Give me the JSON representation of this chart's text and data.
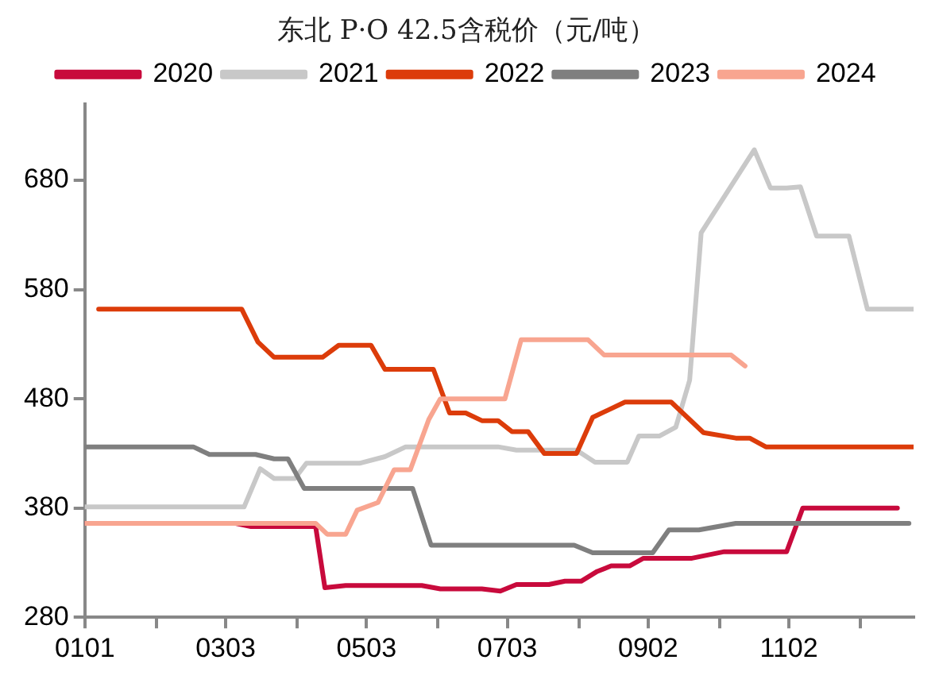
{
  "chart_data": {
    "type": "line",
    "title": "东北 P·O 42.5含税价（元/吨）",
    "legend": "top",
    "grid": false,
    "marker": "none",
    "line_style": "solid",
    "xlim": [
      "--01-01",
      "--12-26"
    ],
    "xticks": [
      {
        "value": "--01-01",
        "label": "0101"
      },
      {
        "value": "--02-01",
        "label": null
      },
      {
        "value": "--03-03",
        "label": "0303"
      },
      {
        "value": "--04-03",
        "label": null
      },
      {
        "value": "--05-03",
        "label": "0503"
      },
      {
        "value": "--06-03",
        "label": null
      },
      {
        "value": "--07-03",
        "label": "0703"
      },
      {
        "value": "--08-03",
        "label": null
      },
      {
        "value": "--09-02",
        "label": "0902"
      },
      {
        "value": "--10-03",
        "label": null
      },
      {
        "value": "--11-02",
        "label": "1102"
      },
      {
        "value": "--12-03",
        "label": null
      }
    ],
    "ylim": [
      280,
      750
    ],
    "yticks": [
      280,
      380,
      480,
      580,
      680
    ],
    "series": [
      {
        "name": "2020",
        "color": "#c80a3c",
        "x": [
          "--01-01",
          "--03-07",
          "--03-14",
          "--04-11",
          "--04-15",
          "--04-24",
          "--05-27",
          "--06-04",
          "--06-22",
          "--06-30",
          "--07-07",
          "--07-21",
          "--07-28",
          "--08-04",
          "--08-11",
          "--08-17",
          "--08-25",
          "--08-31",
          "--09-21",
          "--10-05",
          "--11-01",
          "--11-08",
          "--12-19"
        ],
        "values": [
          366,
          366,
          363,
          363,
          307,
          309,
          309,
          306,
          306,
          304,
          310,
          310,
          313,
          313,
          322,
          327,
          327,
          334,
          334,
          340,
          340,
          380,
          380
        ]
      },
      {
        "name": "2021",
        "color": "#c8c8c8",
        "x": [
          "--01-01",
          "--03-11",
          "--03-18",
          "--03-24",
          "--04-02",
          "--04-07",
          "--04-30",
          "--05-11",
          "--05-20",
          "--06-29",
          "--07-07",
          "--08-02",
          "--08-10",
          "--08-24",
          "--08-29",
          "--09-07",
          "--09-14",
          "--09-20",
          "--09-25",
          "--10-18",
          "--10-25",
          "--11-01",
          "--11-07",
          "--11-14",
          "--11-28",
          "--12-06",
          "--12-26"
        ],
        "values": [
          381,
          381,
          416,
          407,
          407,
          421,
          421,
          427,
          436,
          436,
          433,
          433,
          422,
          422,
          446,
          446,
          454,
          497,
          632,
          708,
          673,
          673,
          674,
          629,
          629,
          562,
          562
        ]
      },
      {
        "name": "2022",
        "color": "#dc3c0a",
        "x": [
          "--01-07",
          "--03-10",
          "--03-17",
          "--03-24",
          "--04-14",
          "--04-21",
          "--05-05",
          "--05-11",
          "--06-01",
          "--06-08",
          "--06-15",
          "--06-22",
          "--06-29",
          "--07-05",
          "--07-12",
          "--07-19",
          "--08-02",
          "--08-09",
          "--08-23",
          "--09-12",
          "--09-26",
          "--10-10",
          "--10-16",
          "--10-23",
          "--12-26"
        ],
        "values": [
          562,
          562,
          532,
          518,
          518,
          529,
          529,
          507,
          507,
          467,
          467,
          460,
          460,
          450,
          450,
          430,
          430,
          463,
          477,
          477,
          449,
          444,
          444,
          436,
          436
        ]
      },
      {
        "name": "2023",
        "color": "#7f7f7f",
        "x": [
          "--01-01",
          "--02-17",
          "--02-24",
          "--03-16",
          "--03-24",
          "--03-30",
          "--04-06",
          "--05-23",
          "--05-31",
          "--08-01",
          "--08-09",
          "--09-04",
          "--09-11",
          "--09-24",
          "--10-10",
          "--12-24"
        ],
        "values": [
          436,
          436,
          429,
          429,
          425,
          425,
          398,
          398,
          346,
          346,
          339,
          339,
          360,
          360,
          366,
          366
        ]
      },
      {
        "name": "2024",
        "color": "#f8a590",
        "x": [
          "--01-01",
          "--04-11",
          "--04-16",
          "--04-24",
          "--04-29",
          "--05-08",
          "--05-15",
          "--05-22",
          "--05-30",
          "--06-04",
          "--07-02",
          "--07-09",
          "--08-07",
          "--08-14",
          "--10-08",
          "--10-14"
        ],
        "values": [
          366,
          366,
          356,
          356,
          378,
          385,
          415,
          415,
          461,
          480,
          480,
          534,
          534,
          520,
          520,
          510
        ]
      }
    ]
  }
}
